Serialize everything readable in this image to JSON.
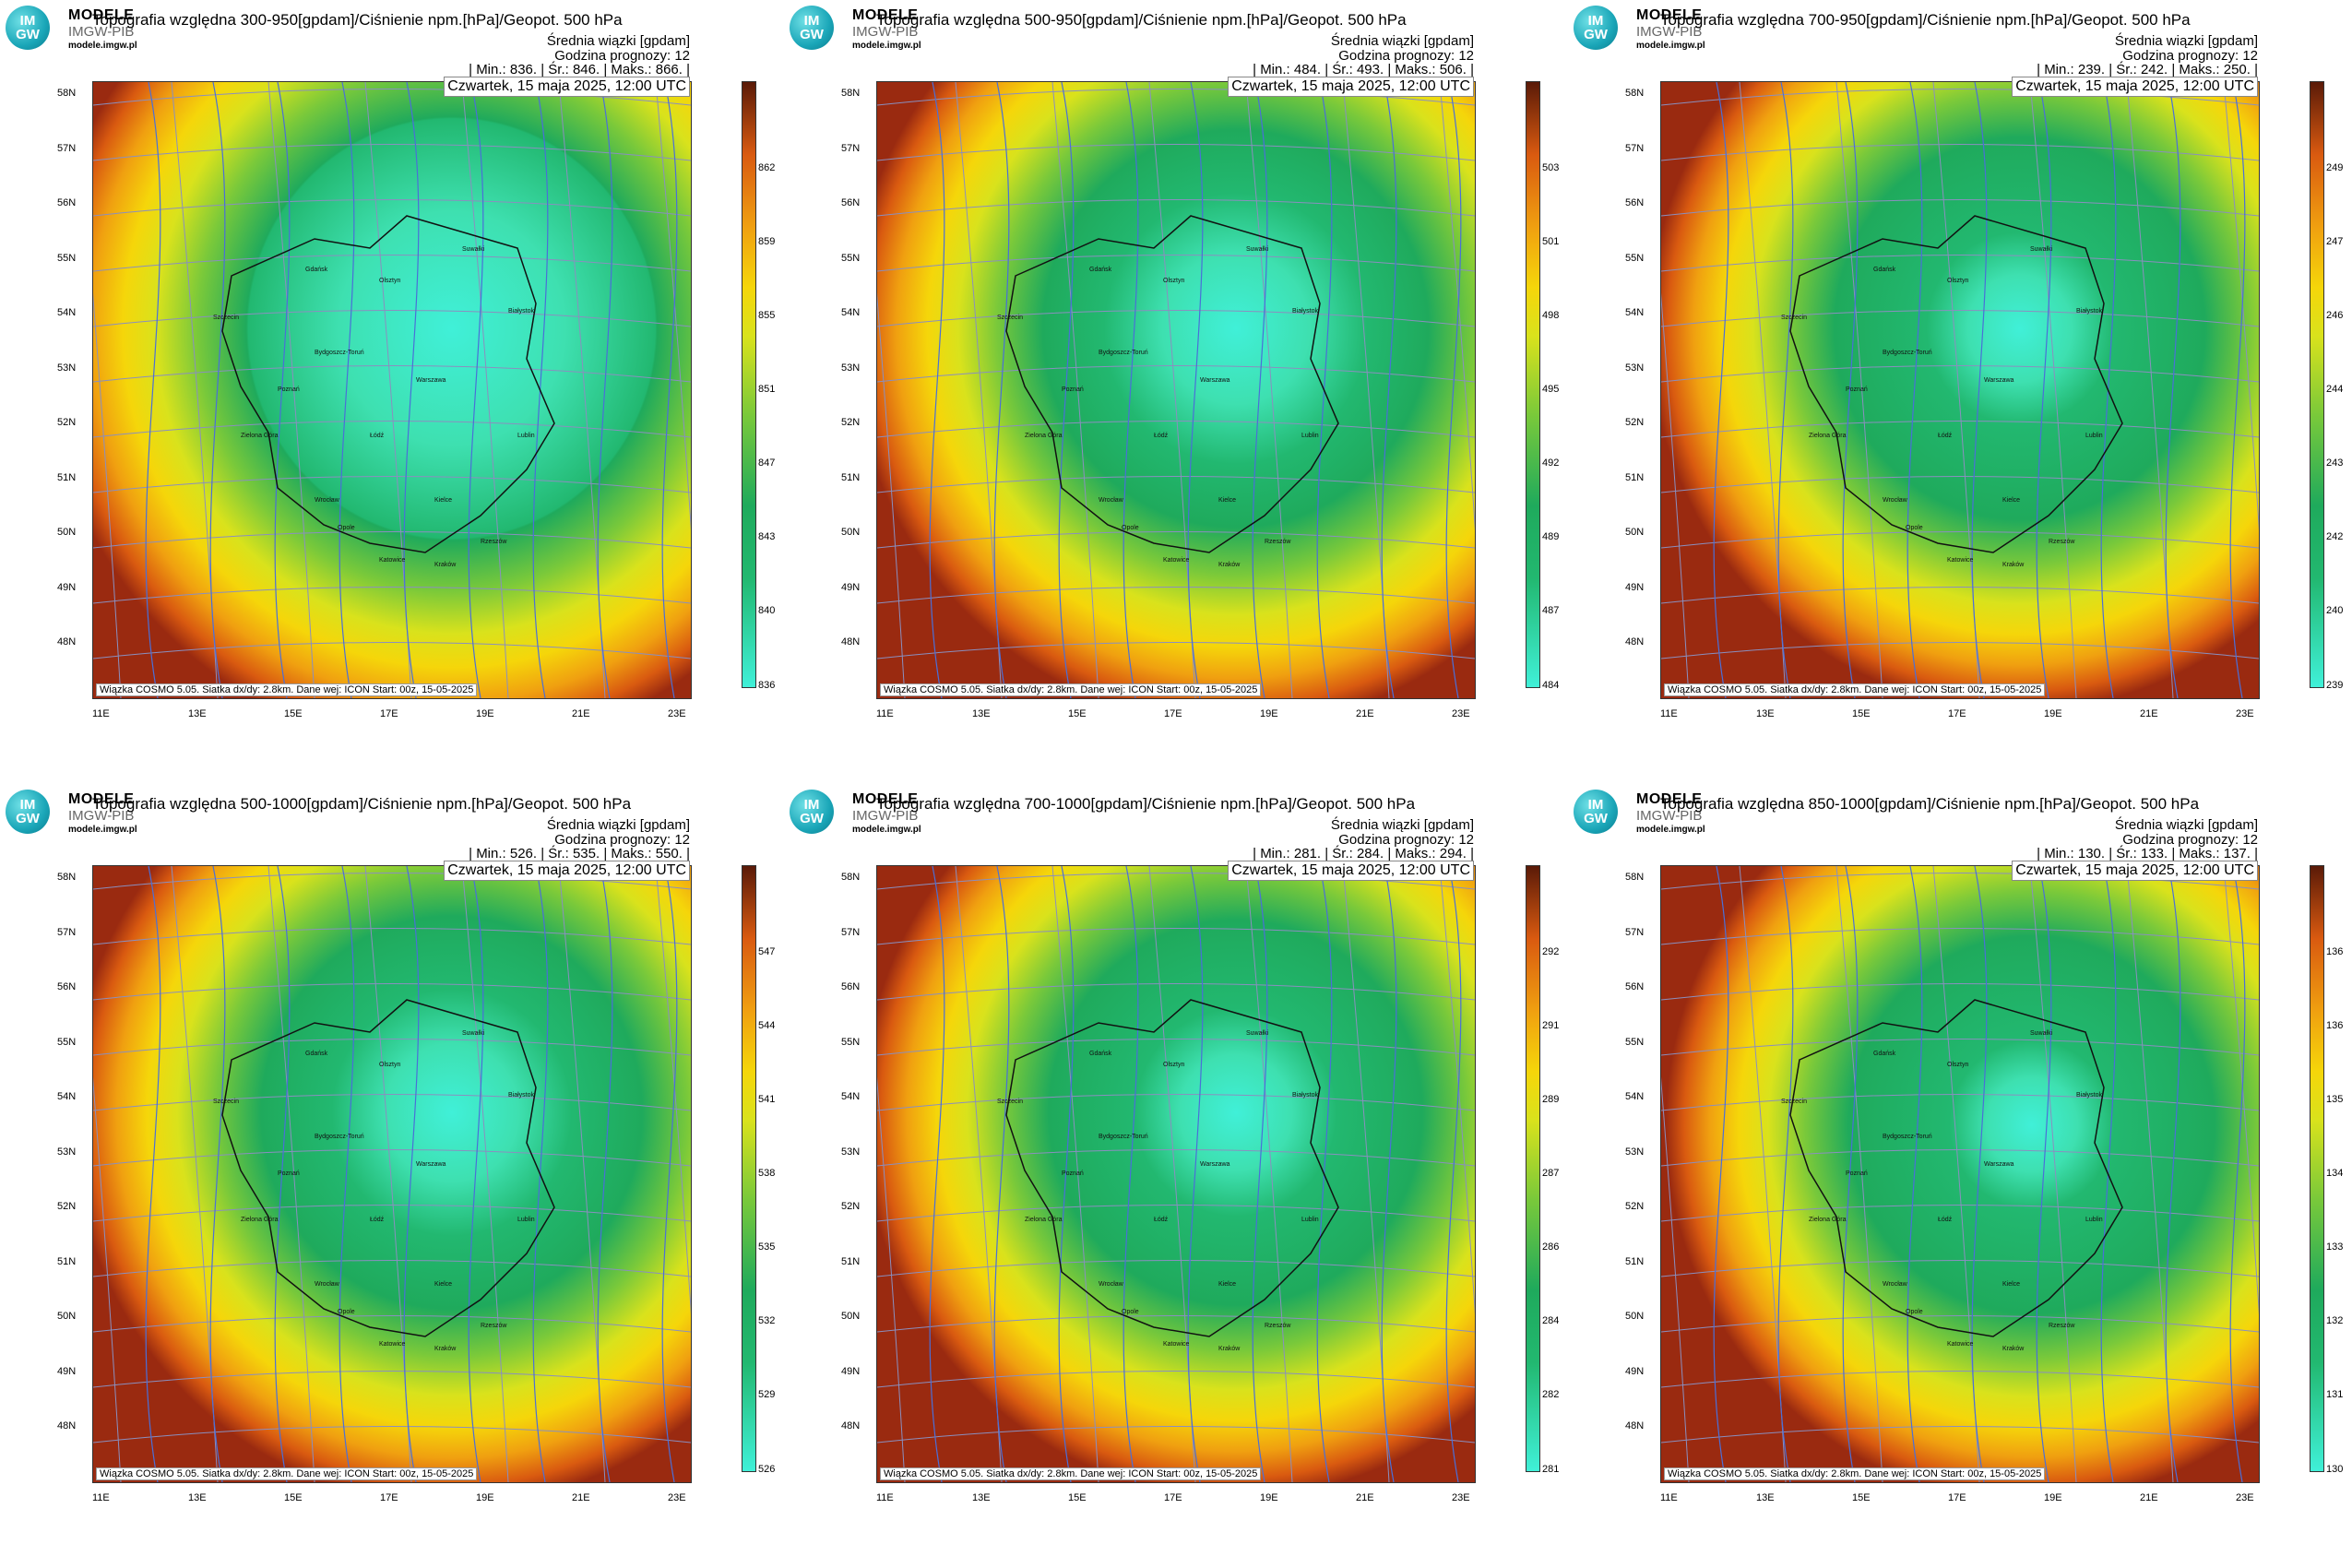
{
  "logo": {
    "badge_top": "IM",
    "badge_bottom": "GW",
    "brand": "MODELE",
    "brand_sub": "IMGW-PIB",
    "url": "modele.imgw.pl"
  },
  "common": {
    "subtitle": "Średnia wiązki [gpdam]",
    "forecast_hour": "Godzina prognozy: 12",
    "date": "Czwartek, 15 maja 2025, 12:00 UTC",
    "footer": "Wiązka COSMO 5.05. Siatka dx/dy: 2.8km. Dane wej: ICON Start: 00z, 15-05-2025",
    "lat_labels": [
      "58N",
      "57N",
      "56N",
      "55N",
      "54N",
      "53N",
      "52N",
      "51N",
      "50N",
      "49N",
      "48N"
    ],
    "lon_labels": [
      "11E",
      "13E",
      "15E",
      "17E",
      "19E",
      "21E",
      "23E"
    ],
    "cities": [
      "Gdańsk",
      "Olsztyn",
      "Suwałki",
      "Białystok",
      "Szczecin",
      "Bydgoszcz-Toruń",
      "Poznań",
      "Warszawa",
      "Zielona Góra",
      "Łódź",
      "Lublin",
      "Wrocław",
      "Kielce",
      "Opole",
      "Katowice",
      "Kraków",
      "Rzeszów"
    ]
  },
  "panels": [
    {
      "title": "Topografia względna 300-950[gpdam]/Ciśnienie npm.[hPa]/Geopot. 500 hPa",
      "stats": "| Min.:     836. | Śr.:     846. | Maks.:     866. |",
      "ticks": [
        "862",
        "859",
        "855",
        "851",
        "847",
        "843",
        "840",
        "836"
      ],
      "cyan_size": 0.55
    },
    {
      "title": "Topografia względna 500-950[gpdam]/Ciśnienie npm.[hPa]/Geopot. 500 hPa",
      "stats": "| Min.:     484. | Śr.:     493. | Maks.:     506. |",
      "ticks": [
        "503",
        "501",
        "498",
        "495",
        "492",
        "489",
        "487",
        "484"
      ],
      "cyan_size": 0.38
    },
    {
      "title": "Topografia względna 700-950[gpdam]/Ciśnienie npm.[hPa]/Geopot. 500 hPa",
      "stats": "| Min.:     239. | Śr.:     242. | Maks.:     250. |",
      "ticks": [
        "249",
        "247",
        "246",
        "244",
        "243",
        "242",
        "240",
        "239"
      ],
      "cyan_size": 0.28
    },
    {
      "title": "Topografia względna 500-1000[gpdam]/Ciśnienie npm.[hPa]/Geopot. 500 hPa",
      "stats": "| Min.:     526. | Śr.:     535. | Maks.:     550. |",
      "ticks": [
        "547",
        "544",
        "541",
        "538",
        "535",
        "532",
        "529",
        "526"
      ],
      "cyan_size": 0.35
    },
    {
      "title": "Topografia względna 700-1000[gpdam]/Ciśnienie npm.[hPa]/Geopot. 500 hPa",
      "stats": "| Min.:     281. | Śr.:     284. | Maks.:     294. |",
      "ticks": [
        "292",
        "291",
        "289",
        "287",
        "286",
        "284",
        "282",
        "281"
      ],
      "cyan_size": 0.3
    },
    {
      "title": "Topografia względna 850-1000[gpdam]/Ciśnienie npm.[hPa]/Geopot. 500 hPa",
      "stats": "| Min.:     130. | Śr.:     133. | Maks.:     137. |",
      "ticks": [
        "136",
        "136",
        "135",
        "134",
        "133",
        "132",
        "131",
        "130"
      ],
      "cyan_size": 0.25
    }
  ]
}
